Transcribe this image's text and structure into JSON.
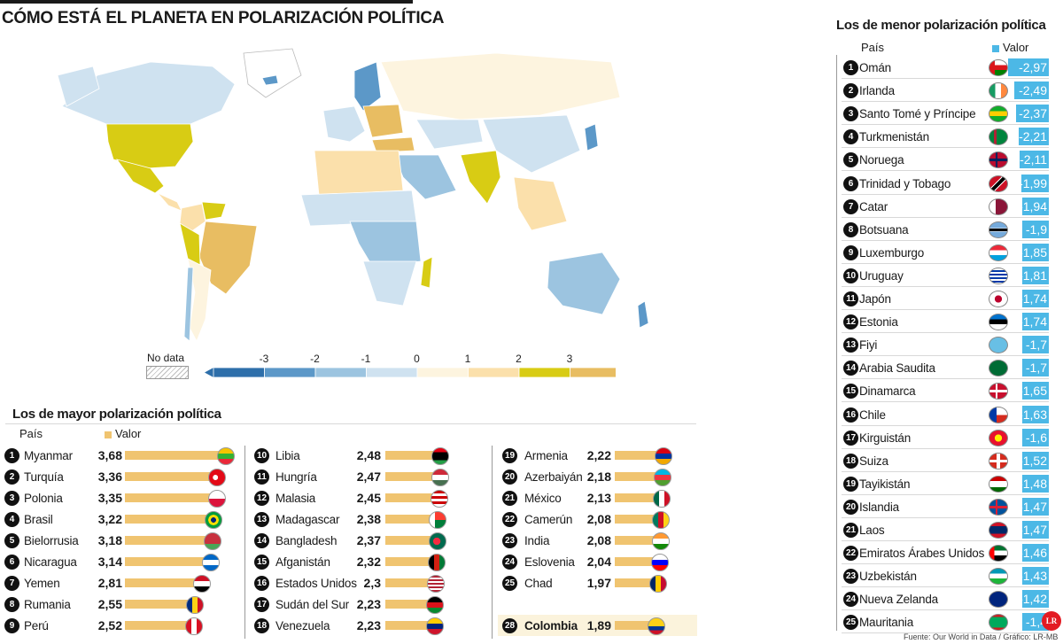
{
  "title": "CÓMO ESTÁ EL PLANETA EN POLARIZACIÓN POLÍTICA",
  "legend": {
    "no_data": "No data",
    "ticks": [
      "-3",
      "-2",
      "-1",
      "0",
      "1",
      "2",
      "3"
    ],
    "colors": [
      "#2e6faa",
      "#5c98c8",
      "#9cc4e0",
      "#cfe2f0",
      "#fdf4df",
      "#fbe0ab",
      "#d8cc14",
      "#e8bd62"
    ]
  },
  "chart_data": [
    {
      "type": "bar",
      "title": "Los de mayor polarización política",
      "xlabel": "País",
      "ylabel": "Valor",
      "bar_color": "#f0c470",
      "ranks": [
        1,
        2,
        3,
        4,
        5,
        6,
        7,
        8,
        9,
        10,
        11,
        12,
        13,
        14,
        15,
        16,
        17,
        18,
        19,
        20,
        21,
        22,
        23,
        24,
        25,
        28
      ],
      "categories": [
        "Myanmar",
        "Turquía",
        "Polonia",
        "Brasil",
        "Bielorrusia",
        "Nicaragua",
        "Yemen",
        "Rumania",
        "Perú",
        "Libia",
        "Hungría",
        "Malasia",
        "Madagascar",
        "Bangladesh",
        "Afganistán",
        "Estados Unidos",
        "Sudán del Sur",
        "Venezuela",
        "Armenia",
        "Azerbaiyán",
        "México",
        "Camerún",
        "India",
        "Eslovenia",
        "Chad",
        "Colombia"
      ],
      "values": [
        3.68,
        3.36,
        3.35,
        3.22,
        3.18,
        3.14,
        2.81,
        2.55,
        2.52,
        2.48,
        2.47,
        2.45,
        2.38,
        2.37,
        2.32,
        2.3,
        2.23,
        2.23,
        2.22,
        2.18,
        2.13,
        2.08,
        2.08,
        2.04,
        1.97,
        1.89
      ],
      "labels": [
        "3,68",
        "3,36",
        "3,35",
        "3,22",
        "3,18",
        "3,14",
        "2,81",
        "2,55",
        "2,52",
        "2,48",
        "2,47",
        "2,45",
        "2,38",
        "2,37",
        "2,32",
        "2,3",
        "2,23",
        "2,23",
        "2,22",
        "2,18",
        "2,13",
        "2,08",
        "2,08",
        "2,04",
        "1,97",
        "1,89"
      ],
      "highlight": "Colombia"
    },
    {
      "type": "bar",
      "title": "Los de menor polarización política",
      "xlabel": "País",
      "ylabel": "Valor",
      "bar_color": "#4cb8e6",
      "categories": [
        "Omán",
        "Irlanda",
        "Santo Tomé y Príncipe",
        "Turkmenistán",
        "Noruega",
        "Trinidad y Tobago",
        "Catar",
        "Botsuana",
        "Luxemburgo",
        "Uruguay",
        "Japón",
        "Estonia",
        "Fiyi",
        "Arabia Saudita",
        "Dinamarca",
        "Chile",
        "Kirguistán",
        "Suiza",
        "Tayikistán",
        "Islandia",
        "Laos",
        "Emiratos Árabes Unidos",
        "Uzbekistán",
        "Nueva Zelanda",
        "Mauritania"
      ],
      "values": [
        -2.97,
        -2.49,
        -2.37,
        -2.21,
        -2.11,
        -1.99,
        -1.94,
        -1.9,
        -1.85,
        -1.81,
        -1.74,
        -1.74,
        -1.7,
        -1.7,
        -1.65,
        -1.63,
        -1.6,
        -1.52,
        -1.48,
        -1.47,
        -1.47,
        -1.46,
        -1.43,
        -1.42,
        -1.4
      ],
      "labels": [
        "-2,97",
        "-2,49",
        "-2,37",
        "-2,21",
        "-2,11",
        "-1,99",
        "-1,94",
        "-1,9",
        "-1,85",
        "-1,81",
        "-1,74",
        "-1,74",
        "-1,7",
        "-1,7",
        "-1,65",
        "-1,63",
        "-1,6",
        "-1,52",
        "-1,48",
        "-1,47",
        "-1,47",
        "-1,46",
        "-1,43",
        "-1,42",
        "-1,4"
      ]
    }
  ],
  "source": "Fuente: Our World in Data / Gráfico: LR-MB",
  "logo": "LR"
}
